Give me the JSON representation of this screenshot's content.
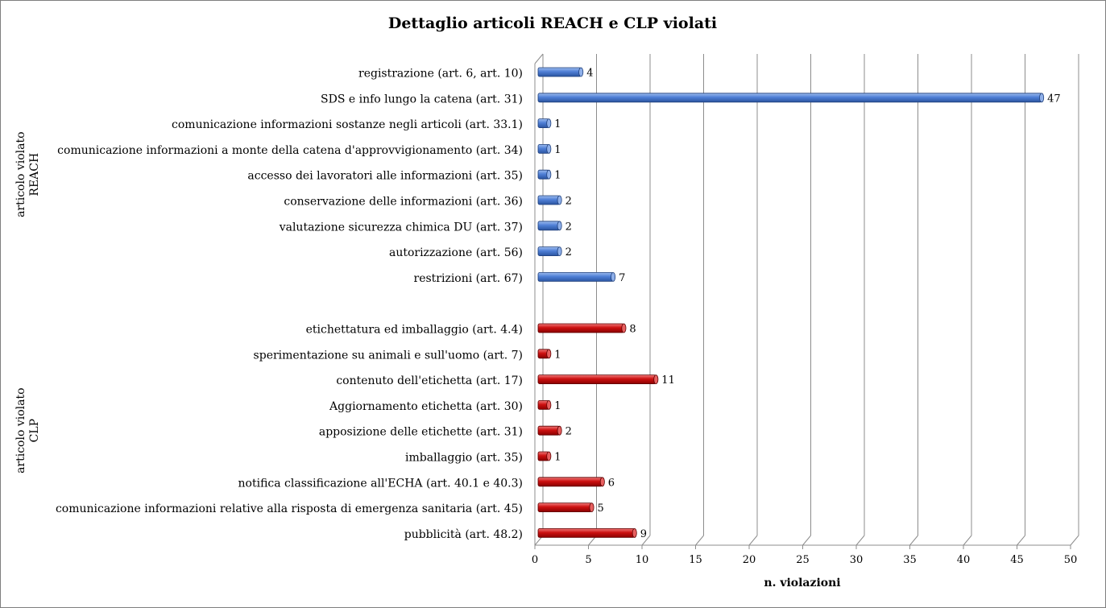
{
  "chart_data": {
    "type": "bar",
    "orientation": "horizontal",
    "title": "Dettaglio articoli REACH e CLP violati",
    "xlabel": "n. violazioni",
    "xlim": [
      0,
      50
    ],
    "x_ticks": [
      "0",
      "5",
      "10",
      "15",
      "20",
      "25",
      "30",
      "35",
      "40",
      "45",
      "50"
    ],
    "grid": "vertical",
    "groups": [
      {
        "label_line1": "articolo violato",
        "label_line2": "REACH",
        "color": "#4472c4",
        "categories": [
          "registrazione (art. 6, art. 10)",
          "SDS e info lungo la catena (art. 31)",
          "comunicazione informazioni sostanze negli articoli (art. 33.1)",
          "comunicazione informazioni a monte della catena d'approvvigionamento (art. 34)",
          "accesso dei lavoratori alle informazioni (art. 35)",
          "conservazione delle informazioni (art. 36)",
          "valutazione sicurezza chimica DU (art. 37)",
          "autorizzazione (art. 56)",
          "restrizioni (art. 67)"
        ],
        "values": [
          4,
          47,
          1,
          1,
          1,
          2,
          2,
          2,
          7
        ],
        "value_labels": [
          "4",
          "47",
          "1",
          "1",
          "1",
          "2",
          "2",
          "2",
          "7"
        ]
      },
      {
        "label_line1": "articolo violato",
        "label_line2": "CLP",
        "color": "#c00000",
        "categories": [
          "etichettatura ed imballaggio (art. 4.4)",
          "sperimentazione su animali e sull'uomo (art. 7)",
          "contenuto dell'etichetta (art. 17)",
          "Aggiornamento etichetta (art. 30)",
          "apposizione delle etichette (art. 31)",
          "imballaggio (art. 35)",
          "notifica classificazione all'ECHA (art. 40.1 e 40.3)",
          "comunicazione informazioni relative alla risposta di emergenza sanitaria (art. 45)",
          "pubblicità (art. 48.2)"
        ],
        "values": [
          8,
          1,
          11,
          1,
          2,
          1,
          6,
          5,
          9
        ],
        "value_labels": [
          "8",
          "1",
          "11",
          "1",
          "2",
          "1",
          "6",
          "5",
          "9"
        ]
      }
    ]
  }
}
